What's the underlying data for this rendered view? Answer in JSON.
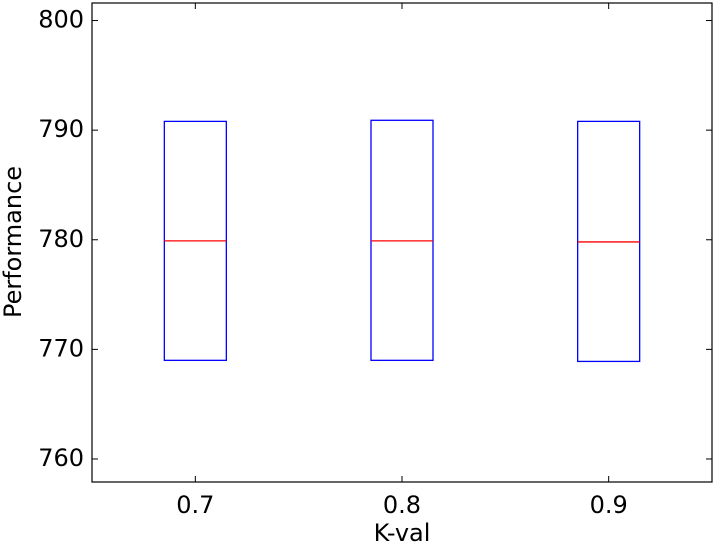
{
  "chart_data": {
    "type": "box",
    "xlabel": "K-val",
    "ylabel": "Performance",
    "categories": [
      "0.7",
      "0.8",
      "0.9"
    ],
    "q1": [
      769.0,
      769.0,
      768.9
    ],
    "median": [
      779.9,
      779.9,
      779.8
    ],
    "q3": [
      790.8,
      790.9,
      790.8
    ],
    "box_color": "#0000ff",
    "median_color": "#ff0000",
    "ylim": [
      757.9,
      801.6
    ],
    "yticks": [
      760,
      770,
      780,
      790,
      800
    ],
    "grid": false
  }
}
